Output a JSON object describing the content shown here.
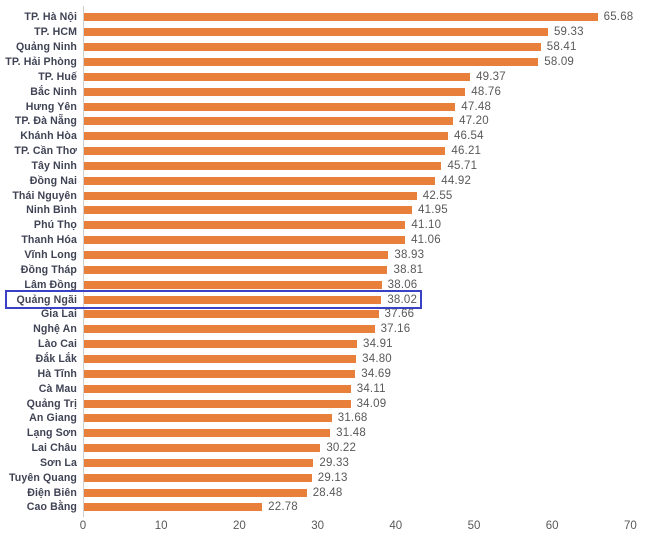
{
  "chart_data": {
    "type": "bar",
    "orientation": "horizontal",
    "title": "",
    "xlabel": "",
    "ylabel": "",
    "xlim": [
      0,
      70
    ],
    "grid": false,
    "legend": false,
    "categories": [
      "TP. Hà Nội",
      "TP. HCM",
      "Quảng Ninh",
      "TP. Hải Phòng",
      "TP. Huế",
      "Bắc Ninh",
      "Hưng Yên",
      "TP. Đà Nẵng",
      "Khánh Hòa",
      "TP. Cần Thơ",
      "Tây Ninh",
      "Đồng Nai",
      "Thái Nguyên",
      "Ninh Bình",
      "Phú Thọ",
      "Thanh Hóa",
      "Vĩnh Long",
      "Đồng Tháp",
      "Lâm Đồng",
      "Quảng Ngãi",
      "Gia Lai",
      "Nghệ An",
      "Lào Cai",
      "Đắk Lắk",
      "Hà Tĩnh",
      "Cà Mau",
      "Quảng Trị",
      "An Giang",
      "Lạng Sơn",
      "Lai Châu",
      "Sơn La",
      "Tuyên Quang",
      "Điện Biên",
      "Cao Bằng"
    ],
    "values": [
      65.68,
      59.33,
      58.41,
      58.09,
      49.37,
      48.76,
      47.48,
      47.2,
      46.54,
      46.21,
      45.71,
      44.92,
      42.55,
      41.95,
      41.1,
      41.06,
      38.93,
      38.81,
      38.06,
      38.02,
      37.66,
      37.16,
      34.91,
      34.8,
      34.69,
      34.11,
      34.09,
      31.68,
      31.48,
      30.22,
      29.33,
      29.13,
      28.48,
      22.78
    ],
    "value_labels": [
      "65.68",
      "59.33",
      "58.41",
      "58.09",
      "49.37",
      "48.76",
      "47.48",
      "47.20",
      "46.54",
      "46.21",
      "45.71",
      "44.92",
      "42.55",
      "41.95",
      "41.10",
      "41.06",
      "38.93",
      "38.81",
      "38.06",
      "38.02",
      "37.66",
      "37.16",
      "34.91",
      "34.80",
      "34.69",
      "34.11",
      "34.09",
      "31.68",
      "31.48",
      "30.22",
      "29.33",
      "29.13",
      "28.48",
      "22.78"
    ],
    "x_tick_labels": [
      "0",
      "10",
      "20",
      "30",
      "40",
      "50",
      "60",
      "70"
    ],
    "x_tick_values": [
      0,
      10,
      20,
      30,
      40,
      50,
      60,
      70
    ],
    "highlighted_category": "Quảng Ngãi",
    "colors": {
      "bar": "#E8803C",
      "category_label": "#3F4354",
      "value_label": "#595959",
      "tick_label": "#595959",
      "axis_line": "#cfcfcf",
      "highlight_border": "#3B41C5"
    }
  }
}
